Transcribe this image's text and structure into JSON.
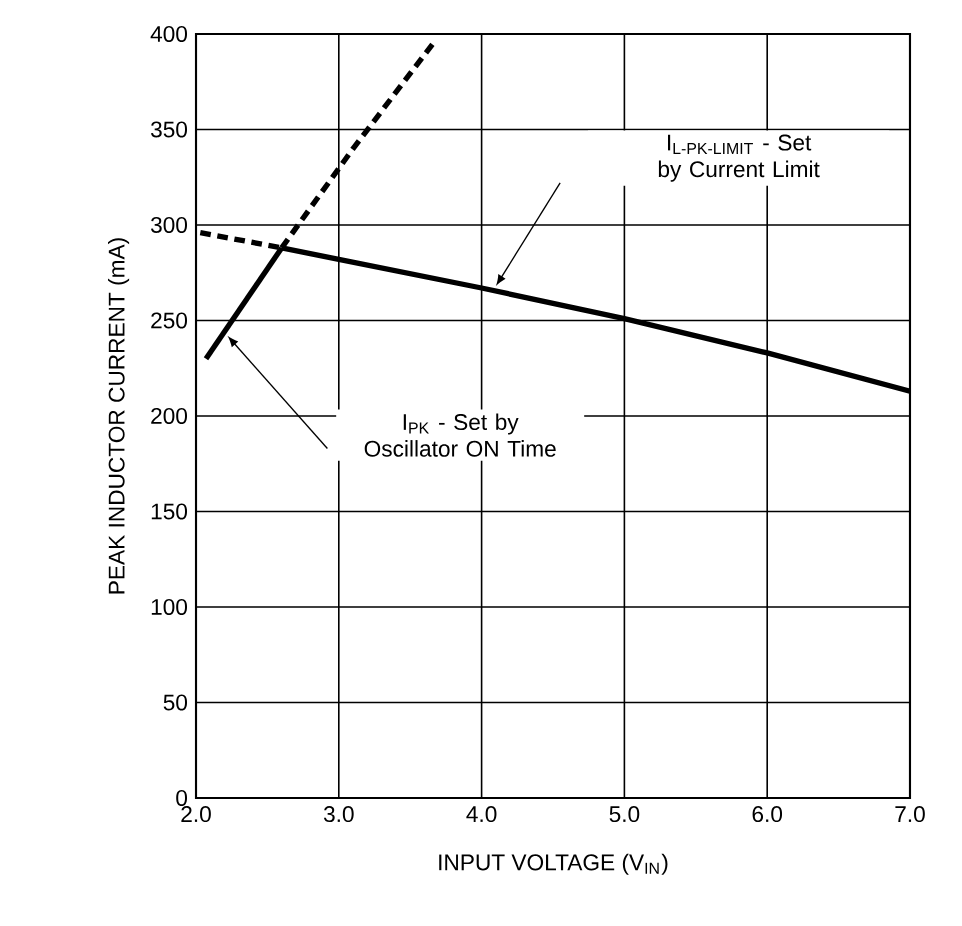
{
  "chart_data": {
    "type": "line",
    "xlabel": "INPUT VOLTAGE (V$_{IN}$)",
    "ylabel": "PEAK INDUCTOR CURRENT (mA)",
    "xlim": [
      2.0,
      7.0
    ],
    "ylim": [
      0,
      400
    ],
    "xticks": [
      {
        "value": 2,
        "label": "2.0"
      },
      {
        "value": 3,
        "label": "3.0"
      },
      {
        "value": 4,
        "label": "4.0"
      },
      {
        "value": 5,
        "label": "5.0"
      },
      {
        "value": 6,
        "label": "6.0"
      },
      {
        "value": 7,
        "label": "7.0"
      }
    ],
    "yticks": [
      0,
      50,
      100,
      150,
      200,
      250,
      300,
      350,
      400
    ],
    "grid": true,
    "marker": "none",
    "series": [
      {
        "color": "#000000",
        "line_style": "solid",
        "x": [
          2.07,
          2.6
        ],
        "values": [
          230,
          288
        ]
      },
      {
        "color": "#000000",
        "line_style": "dashed",
        "x": [
          2.6,
          3.1,
          3.68
        ],
        "values": [
          288,
          340,
          397
        ]
      },
      {
        "color": "#000000",
        "line_style": "dashed",
        "x": [
          2.03,
          2.6
        ],
        "values": [
          296,
          288
        ]
      },
      {
        "color": "#000000",
        "line_style": "solid",
        "x": [
          2.6,
          3.0,
          4.0,
          5.0,
          6.0,
          7.0
        ],
        "values": [
          288,
          282,
          267,
          251,
          233,
          213
        ]
      }
    ],
    "annotations": [
      "I$_{L-PK-LIMIT}$ - Set by Current Limit",
      "I$_{PK}$ - Set by Oscillator ON Time"
    ]
  }
}
